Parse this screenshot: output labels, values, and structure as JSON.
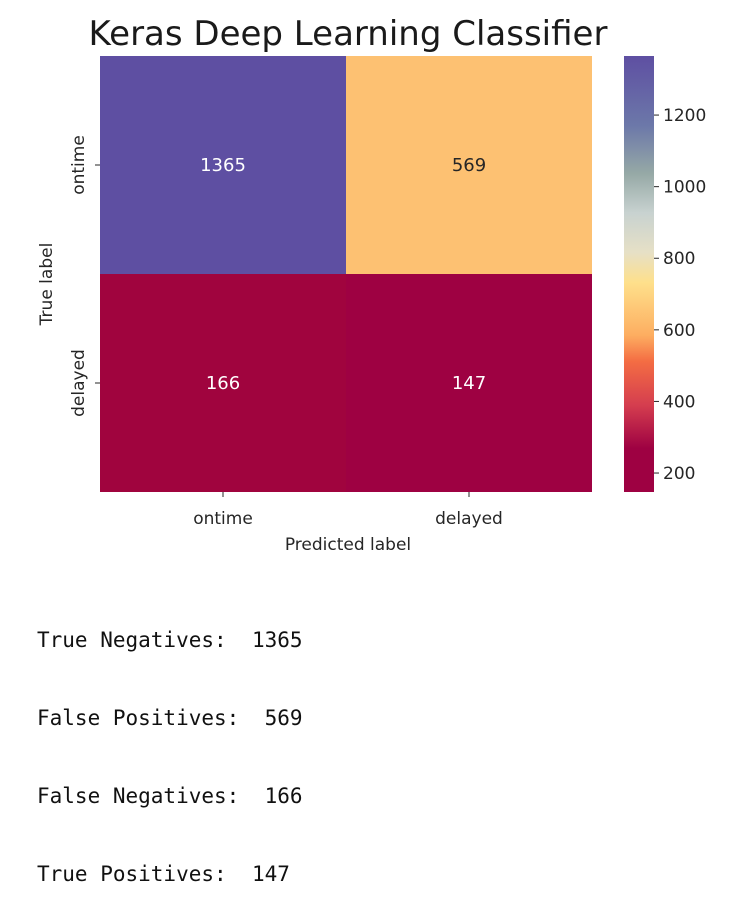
{
  "chart_data": {
    "type": "heatmap",
    "title": "Keras Deep Learning Classifier",
    "xlabel": "Predicted label",
    "ylabel": "True label",
    "x_categories": [
      "ontime",
      "delayed"
    ],
    "y_categories": [
      "ontime",
      "delayed"
    ],
    "values": [
      [
        1365,
        569
      ],
      [
        166,
        147
      ]
    ],
    "colormap": "Spectral",
    "colorbar": {
      "min": 147,
      "max": 1365,
      "ticks": [
        200,
        400,
        600,
        800,
        1000,
        1200
      ]
    },
    "colors": {
      "1365": "#5e4fa2",
      "569": "#fdc172",
      "166": "#a0043e",
      "147": "#9e0142"
    }
  },
  "summary": [
    {
      "label": "True Negatives:",
      "value": "1365"
    },
    {
      "label": "False Positives:",
      "value": "569"
    },
    {
      "label": "False Negatives:",
      "value": "166"
    },
    {
      "label": "True Positives:",
      "value": "147"
    }
  ]
}
